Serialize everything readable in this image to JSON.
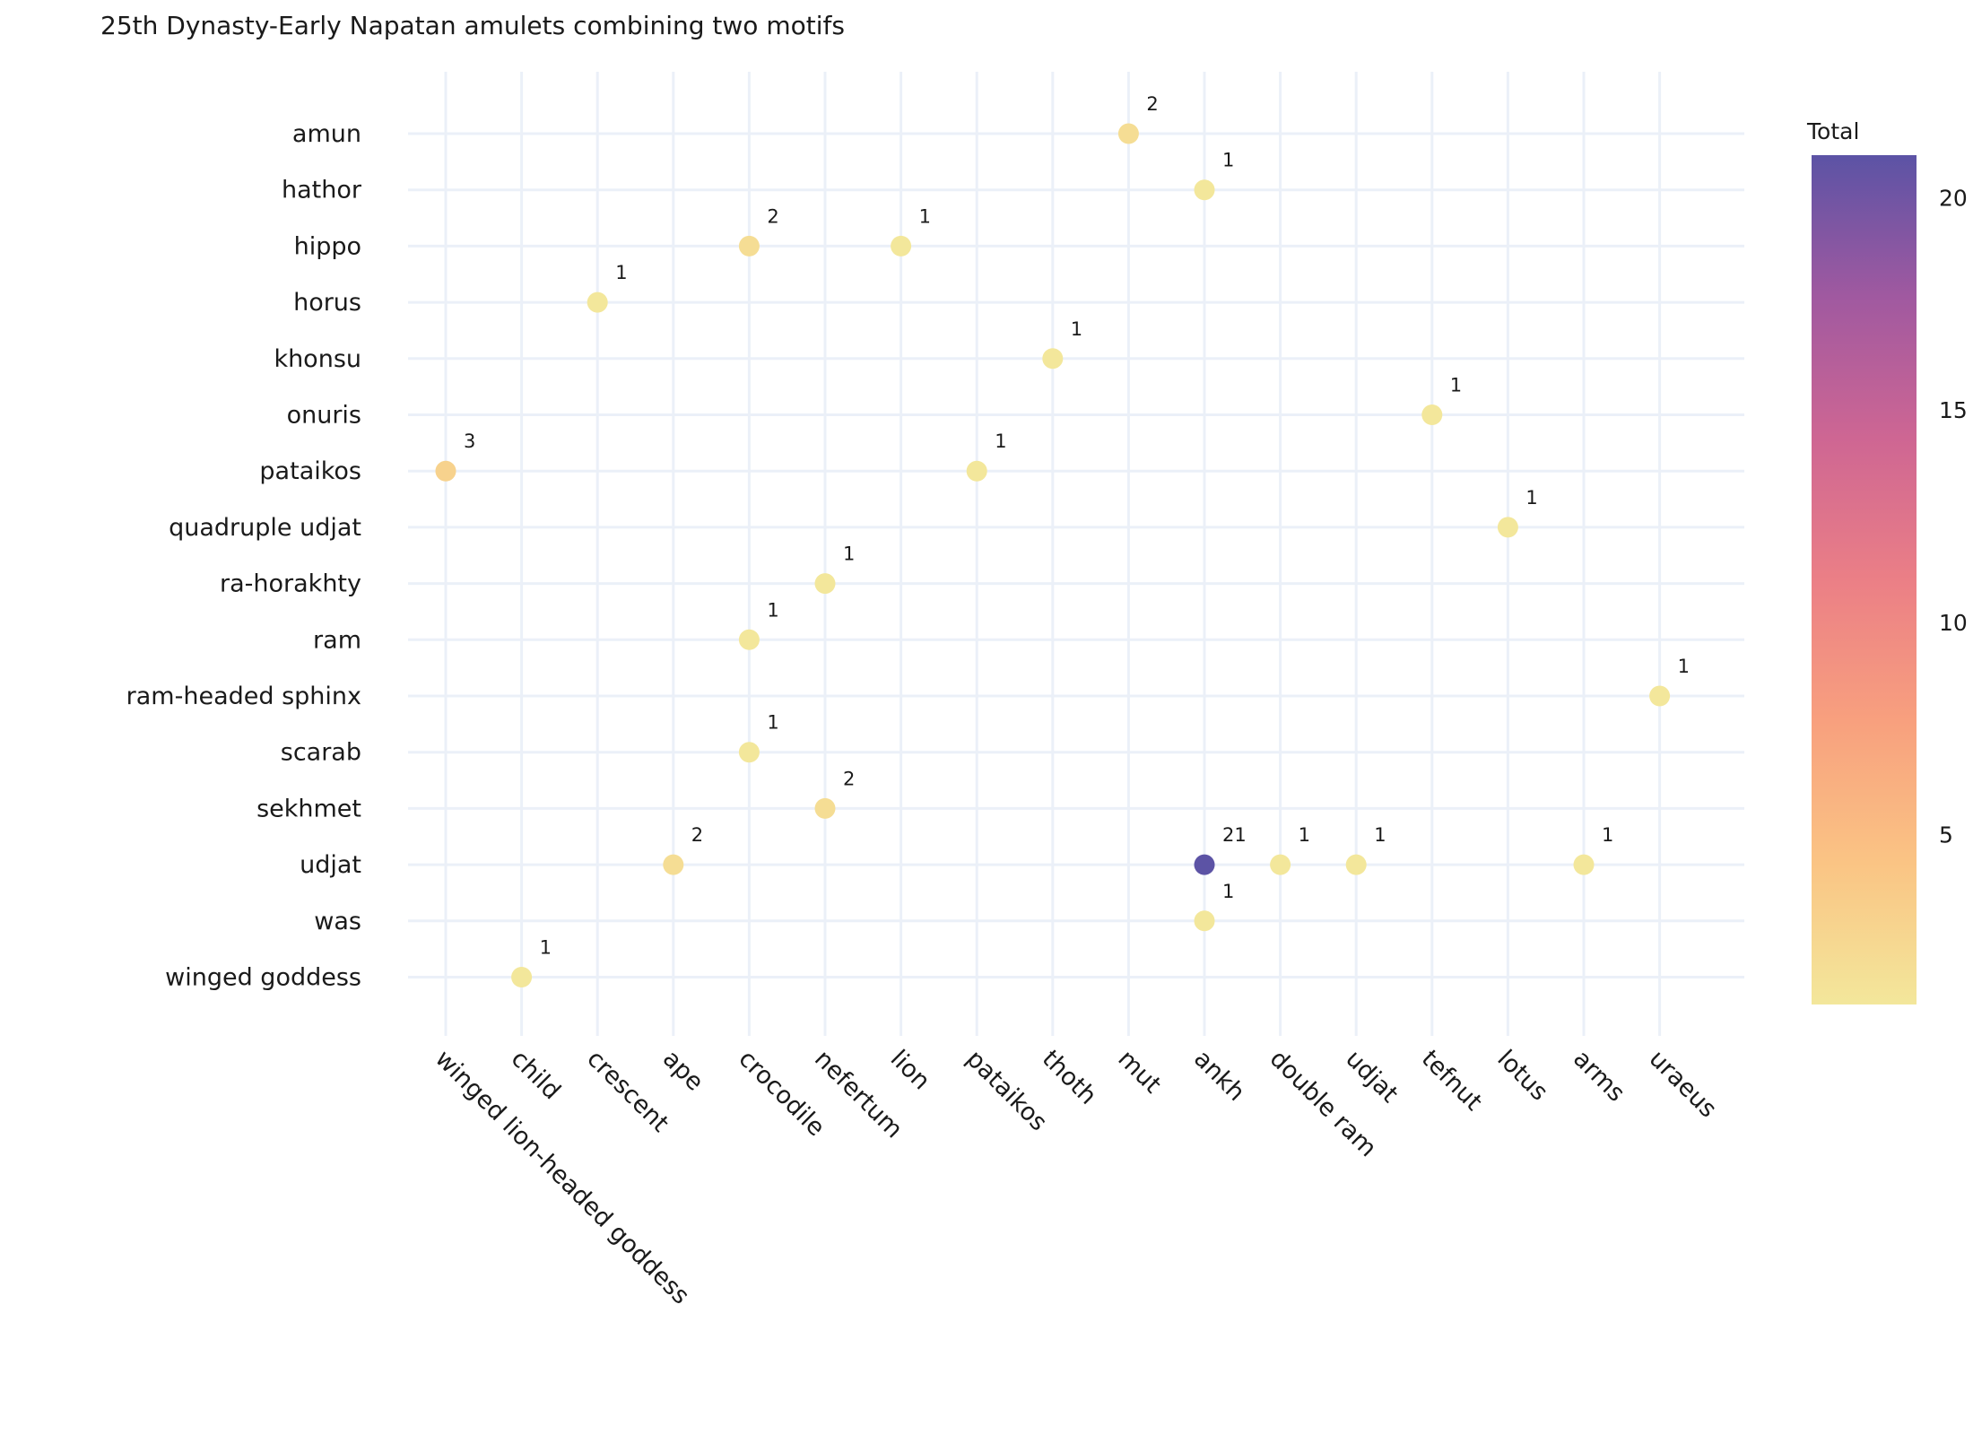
{
  "chart_data": {
    "type": "scatter",
    "title": "25th Dynasty-Early Napatan amulets combining two motifs",
    "xlabel": "",
    "ylabel": "",
    "x_categories": [
      "winged lion-headed goddess",
      "child",
      "crescent",
      "ape",
      "crocodile",
      "nefertum",
      "lion",
      "pataikos",
      "thoth",
      "mut",
      "ankh",
      "double ram",
      "udjat",
      "tefnut",
      "lotus",
      "arms",
      "uraeus"
    ],
    "y_categories": [
      "amun",
      "hathor",
      "hippo",
      "horus",
      "khonsu",
      "onuris",
      "pataikos",
      "quadruple udjat",
      "ra-horakhty",
      "ram",
      "ram-headed sphinx",
      "scarab",
      "sekhmet",
      "udjat",
      "was",
      "winged goddess"
    ],
    "points": [
      {
        "x": "mut",
        "y": "amun",
        "value": 2
      },
      {
        "x": "ankh",
        "y": "hathor",
        "value": 1
      },
      {
        "x": "crocodile",
        "y": "hippo",
        "value": 2
      },
      {
        "x": "lion",
        "y": "hippo",
        "value": 1
      },
      {
        "x": "crescent",
        "y": "horus",
        "value": 1
      },
      {
        "x": "thoth",
        "y": "khonsu",
        "value": 1
      },
      {
        "x": "tefnut",
        "y": "onuris",
        "value": 1
      },
      {
        "x": "winged lion-headed goddess",
        "y": "pataikos",
        "value": 3
      },
      {
        "x": "pataikos",
        "y": "pataikos",
        "value": 1
      },
      {
        "x": "lotus",
        "y": "quadruple udjat",
        "value": 1
      },
      {
        "x": "nefertum",
        "y": "ra-horakhty",
        "value": 1
      },
      {
        "x": "crocodile",
        "y": "ram",
        "value": 1
      },
      {
        "x": "uraeus",
        "y": "ram-headed sphinx",
        "value": 1
      },
      {
        "x": "crocodile",
        "y": "scarab",
        "value": 1
      },
      {
        "x": "nefertum",
        "y": "sekhmet",
        "value": 2
      },
      {
        "x": "ape",
        "y": "udjat",
        "value": 2
      },
      {
        "x": "ankh",
        "y": "udjat",
        "value": 21
      },
      {
        "x": "double ram",
        "y": "udjat",
        "value": 1
      },
      {
        "x": "udjat",
        "y": "udjat",
        "value": 1
      },
      {
        "x": "arms",
        "y": "udjat",
        "value": 1
      },
      {
        "x": "ankh",
        "y": "was",
        "value": 1
      },
      {
        "x": "child",
        "y": "winged goddess",
        "value": 1
      }
    ],
    "colorbar": {
      "title": "Total",
      "range": [
        1,
        21
      ],
      "tick_values": [
        5,
        10,
        15,
        20
      ],
      "tick_labels": [
        "5",
        "10",
        "15",
        "20"
      ],
      "colors": [
        "#f3e79b",
        "#fac484",
        "#f8a07e",
        "#eb7f86",
        "#ce6693",
        "#a059a0",
        "#5c53a5"
      ]
    },
    "grid": true
  }
}
